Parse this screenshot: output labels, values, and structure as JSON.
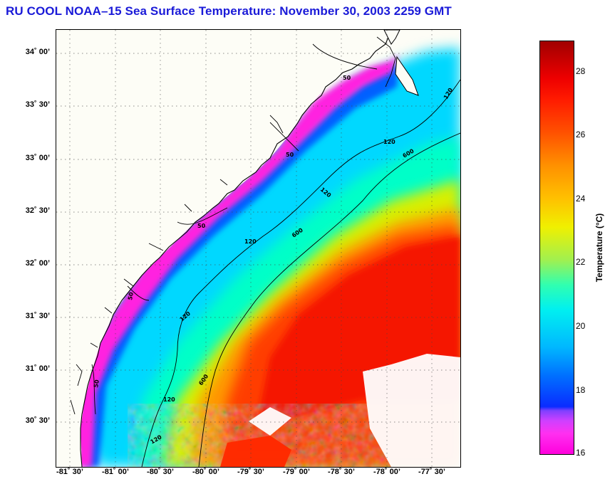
{
  "title": "RU COOL  NOAA–15  Sea Surface Temperature:  November 30, 2003 2259 GMT",
  "map": {
    "lat_labels": [
      "34˚ 00’",
      "33˚ 30’",
      "33˚ 00’",
      "32˚ 30’",
      "32˚ 00’",
      "31˚ 30’",
      "31˚ 00’",
      "30˚ 30’"
    ],
    "lon_labels": [
      "-81˚ 30’",
      "-81˚ 00’",
      "-80˚ 30’",
      "-80˚ 00’",
      "-79˚ 30’",
      "-79˚ 00’",
      "-78˚ 30’",
      "-78˚ 00’",
      "-77˚ 30’"
    ],
    "isobath_labels": [
      "50",
      "50",
      "50",
      "50",
      "50",
      "120",
      "120",
      "120",
      "120",
      "120",
      "120",
      "120",
      "600",
      "600",
      "600"
    ],
    "lat_range": [
      30.15,
      34.25
    ],
    "lon_range": [
      -81.65,
      -77.2
    ]
  },
  "colorbar": {
    "label": "Temperature (°C)",
    "ticks": [
      "28",
      "26",
      "24",
      "22",
      "20",
      "18",
      "16"
    ],
    "range": [
      16,
      29
    ],
    "colors": {
      "min": "#ff00dd",
      "mid": "#00f0f0",
      "max": "#a00000"
    }
  }
}
